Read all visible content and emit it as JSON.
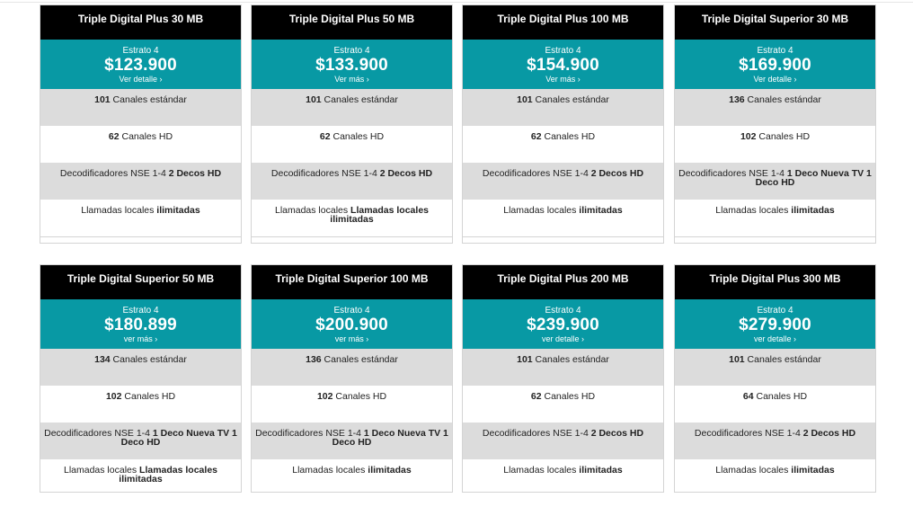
{
  "plans": [
    {
      "title": "Triple Digital Plus 30 MB",
      "estrato": "Estrato 4",
      "price": "$123.900",
      "detail": "Ver detalle ›",
      "canales_std_num": "101",
      "canales_std_label": " Canales estándar",
      "canales_hd_num": "62",
      "canales_hd_label": " Canales HD",
      "deco_prefix": "Decodificadores NSE 1-4 ",
      "deco_value": "2 Decos HD",
      "llamadas_prefix": "Llamadas locales ",
      "llamadas_value": "ilimitadas"
    },
    {
      "title": "Triple Digital Plus 50 MB",
      "estrato": "Estrato 4",
      "price": "$133.900",
      "detail": "Ver más ›",
      "canales_std_num": "101",
      "canales_std_label": " Canales estándar",
      "canales_hd_num": "62",
      "canales_hd_label": " Canales HD",
      "deco_prefix": "Decodificadores NSE 1-4 ",
      "deco_value": "2 Decos HD",
      "llamadas_prefix": "Llamadas locales ",
      "llamadas_value": "Llamadas locales ilimitadas"
    },
    {
      "title": "Triple Digital Plus 100 MB",
      "estrato": "Estrato 4",
      "price": "$154.900",
      "detail": "Ver más ›",
      "canales_std_num": "101",
      "canales_std_label": " Canales estándar",
      "canales_hd_num": "62",
      "canales_hd_label": " Canales HD",
      "deco_prefix": "Decodificadores NSE 1-4 ",
      "deco_value": "2 Decos HD",
      "llamadas_prefix": "Llamadas locales ",
      "llamadas_value": "ilimitadas"
    },
    {
      "title": "Triple Digital Superior 30 MB",
      "estrato": "Estrato 4",
      "price": "$169.900",
      "detail": "Ver detalle ›",
      "canales_std_num": "136",
      "canales_std_label": " Canales estándar",
      "canales_hd_num": "102",
      "canales_hd_label": " Canales HD",
      "deco_prefix": "Decodificadores NSE 1-4 ",
      "deco_value": "1 Deco Nueva TV 1 Deco HD",
      "llamadas_prefix": "Llamadas locales ",
      "llamadas_value": "ilimitadas"
    },
    {
      "title": "Triple Digital Superior 50 MB",
      "estrato": "Estrato 4",
      "price": "$180.899",
      "detail": "ver más ›",
      "canales_std_num": "134",
      "canales_std_label": " Canales estándar",
      "canales_hd_num": "102",
      "canales_hd_label": " Canales HD",
      "deco_prefix": "Decodificadores NSE 1-4 ",
      "deco_value": "1 Deco Nueva TV 1 Deco HD",
      "llamadas_prefix": "Llamadas locales ",
      "llamadas_value": "Llamadas locales ilimitadas"
    },
    {
      "title": "Triple Digital Superior 100 MB",
      "estrato": "Estrato 4",
      "price": "$200.900",
      "detail": "ver más ›",
      "canales_std_num": "136",
      "canales_std_label": " Canales estándar",
      "canales_hd_num": "102",
      "canales_hd_label": " Canales HD",
      "deco_prefix": "Decodificadores NSE 1-4 ",
      "deco_value": "1 Deco Nueva TV 1 Deco HD",
      "llamadas_prefix": "Llamadas locales ",
      "llamadas_value": "ilimitadas"
    },
    {
      "title": "Triple Digital Plus 200 MB",
      "estrato": "Estrato 4",
      "price": "$239.900",
      "detail": "ver detalle ›",
      "canales_std_num": "101",
      "canales_std_label": " Canales estándar",
      "canales_hd_num": "62",
      "canales_hd_label": " Canales HD",
      "deco_prefix": "Decodificadores NSE 1-4 ",
      "deco_value": "2 Decos HD",
      "llamadas_prefix": "Llamadas locales ",
      "llamadas_value": "ilimitadas"
    },
    {
      "title": "Triple Digital Plus 300 MB",
      "estrato": "Estrato 4",
      "price": "$279.900",
      "detail": "ver detalle ›",
      "canales_std_num": "101",
      "canales_std_label": " Canales estándar",
      "canales_hd_num": "64",
      "canales_hd_label": " Canales HD",
      "deco_prefix": "Decodificadores NSE 1-4 ",
      "deco_value": "2 Decos HD",
      "llamadas_prefix": "Llamadas locales ",
      "llamadas_value": "ilimitadas"
    }
  ],
  "colors": {
    "header": "#000000",
    "price_band": "#0899a4",
    "gray_row": "#dcdcdc"
  }
}
